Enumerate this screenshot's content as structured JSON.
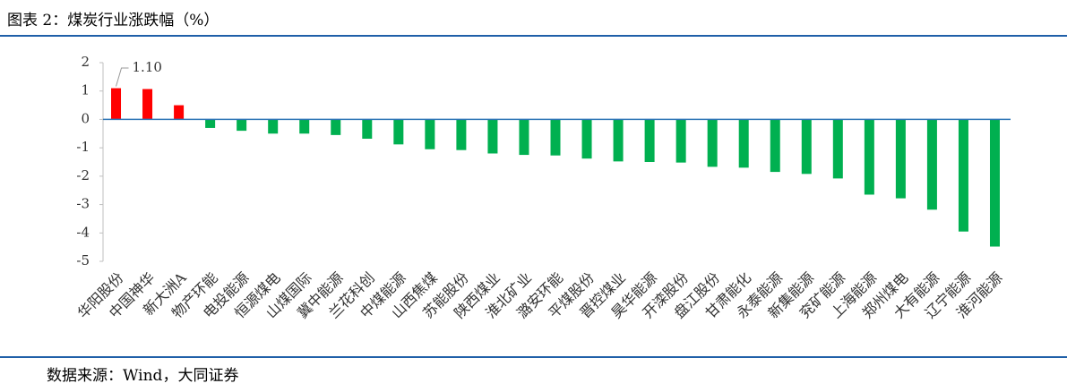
{
  "chart_data": {
    "type": "bar",
    "title": "图表 2：煤炭行业涨跌幅（%）",
    "source": "数据来源：Wind，大同证券",
    "categories": [
      "华阳股份",
      "中国神华",
      "新大洲A",
      "物产环能",
      "电投能源",
      "恒源煤电",
      "山煤国际",
      "冀中能源",
      "兰花科创",
      "中煤能源",
      "山西焦煤",
      "苏能股份",
      "陕西煤业",
      "淮北矿业",
      "潞安环能",
      "平煤股份",
      "晋控煤业",
      "昊华能源",
      "开滦股份",
      "盘江股份",
      "甘肃能化",
      "永泰能源",
      "新集能源",
      "兖矿能源",
      "上海能源",
      "郑州煤电",
      "大有能源",
      "辽宁能源",
      "淮河能源"
    ],
    "values": [
      1.1,
      1.07,
      0.5,
      -0.3,
      -0.4,
      -0.5,
      -0.5,
      -0.55,
      -0.68,
      -0.88,
      -1.05,
      -1.08,
      -1.2,
      -1.25,
      -1.27,
      -1.38,
      -1.48,
      -1.5,
      -1.52,
      -1.67,
      -1.7,
      -1.85,
      -1.92,
      -2.08,
      -2.65,
      -2.78,
      -3.18,
      -3.95,
      -4.48
    ],
    "value_labels": [
      "1.10",
      null,
      null,
      null,
      null,
      null,
      null,
      null,
      null,
      null,
      null,
      null,
      null,
      null,
      null,
      null,
      null,
      null,
      null,
      null,
      null,
      null,
      null,
      null,
      null,
      null,
      null,
      null,
      null
    ],
    "color_positive": "#ff0000",
    "color_negative": "#00b050",
    "ylim": [
      -5,
      2
    ],
    "yticks": [
      2,
      1,
      0,
      -1,
      -2,
      -3,
      -4,
      -5
    ]
  }
}
